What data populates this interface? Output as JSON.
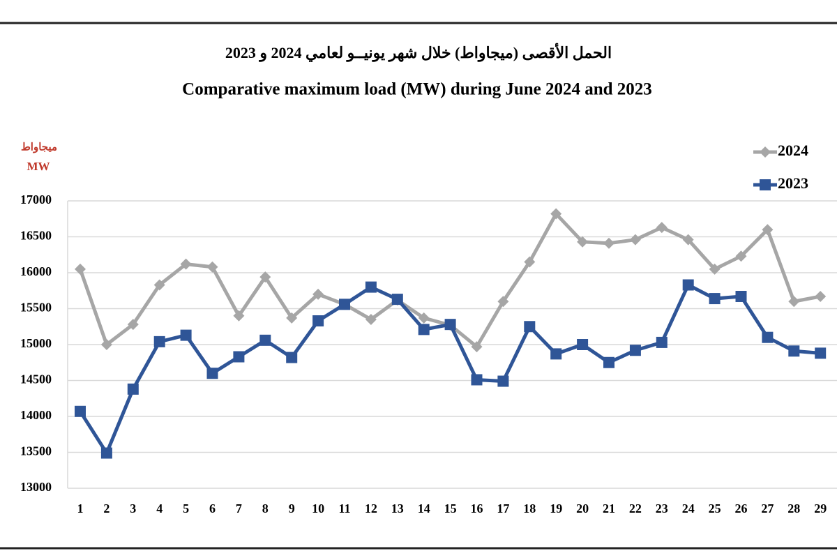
{
  "chart_data": {
    "type": "line",
    "title": "الحمل الأقصى (ميجاواط) خلال شهر يونيــو لعامي 2024 و 2023",
    "subtitle": "Comparative maximum load (MW) during June 2024 and 2023",
    "y_label": [
      "ميجاواط",
      "MW"
    ],
    "categories": [
      "1",
      "2",
      "3",
      "4",
      "5",
      "6",
      "7",
      "8",
      "9",
      "10",
      "11",
      "12",
      "13",
      "14",
      "15",
      "16",
      "17",
      "18",
      "19",
      "20",
      "21",
      "22",
      "23",
      "24",
      "25",
      "26",
      "27",
      "28",
      "29"
    ],
    "series": [
      {
        "name": "2024",
        "color": "#a6a6a6",
        "marker": "diamond",
        "values": [
          16050,
          15000,
          15280,
          15830,
          16120,
          16080,
          15400,
          15940,
          15370,
          15700,
          15560,
          15350,
          15620,
          15370,
          15270,
          14970,
          15600,
          16150,
          16820,
          16430,
          16410,
          16460,
          16630,
          16460,
          16050,
          16230,
          16600,
          15600,
          15670
        ]
      },
      {
        "name": "2023",
        "color": "#2f5597",
        "marker": "square",
        "values": [
          14070,
          13490,
          14380,
          15040,
          15130,
          14600,
          14830,
          15060,
          14820,
          15330,
          15560,
          15800,
          15630,
          15210,
          15280,
          14510,
          14490,
          15250,
          14870,
          15000,
          14750,
          14920,
          15030,
          15830,
          15640,
          15670,
          15100,
          14910,
          14880
        ]
      }
    ],
    "ylim": [
      13000,
      17000
    ],
    "yticks": [
      13000,
      13500,
      14000,
      14500,
      15000,
      15500,
      16000,
      16500,
      17000
    ],
    "grid": true,
    "legend": "top-right"
  }
}
